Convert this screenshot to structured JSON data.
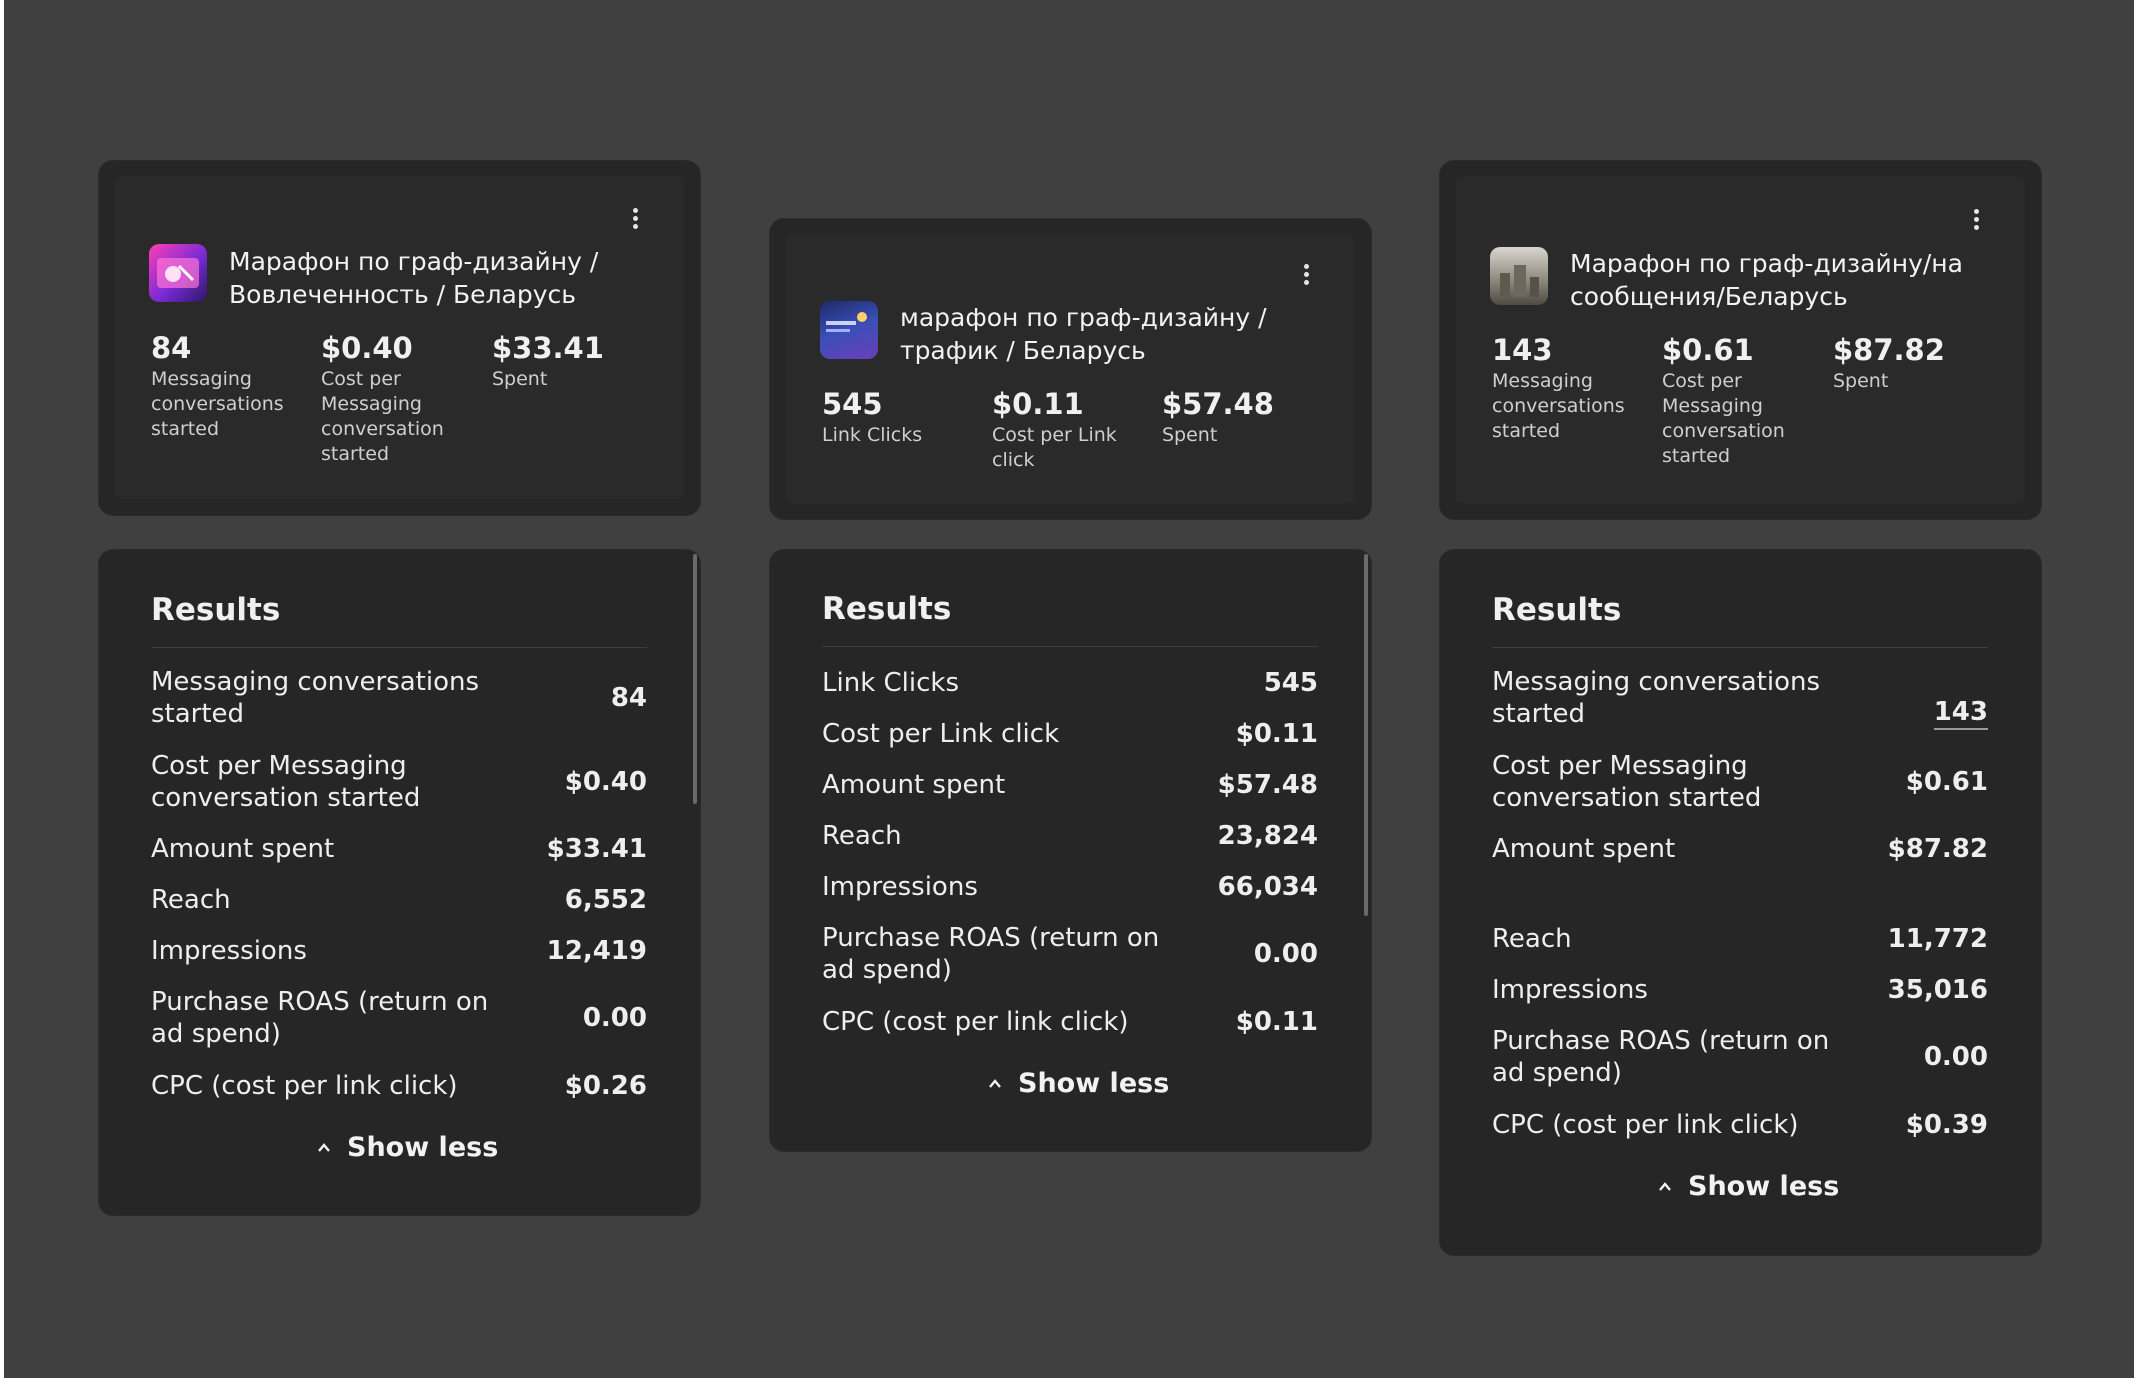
{
  "cards": [
    {
      "title": "Марафон по граф-дизайну / Вовлеченность / Беларусь",
      "metrics": [
        {
          "value": "84",
          "label": "Messaging conversations started"
        },
        {
          "value": "$0.40",
          "label": "Cost per Messaging conversation started"
        },
        {
          "value": "$33.41",
          "label": "Spent"
        }
      ],
      "results_title": "Results",
      "rows": [
        {
          "label": "Messaging conversations started",
          "value": "84"
        },
        {
          "label": "Cost per Messaging conversation started",
          "value": "$0.40"
        },
        {
          "label": "Amount spent",
          "value": "$33.41"
        },
        {
          "label": "Reach",
          "value": "6,552"
        },
        {
          "label": "Impressions",
          "value": "12,419"
        },
        {
          "label": "Purchase ROAS (return on ad spend)",
          "value": "0.00"
        },
        {
          "label": "CPC (cost per link click)",
          "value": "$0.26"
        }
      ],
      "show_less": "Show less"
    },
    {
      "title": "марафон по граф-дизайну / трафик / Беларусь",
      "metrics": [
        {
          "value": "545",
          "label": "Link Clicks"
        },
        {
          "value": "$0.11",
          "label": "Cost per Link click"
        },
        {
          "value": "$57.48",
          "label": "Spent"
        }
      ],
      "results_title": "Results",
      "rows": [
        {
          "label": "Link Clicks",
          "value": "545"
        },
        {
          "label": "Cost per Link click",
          "value": "$0.11"
        },
        {
          "label": "Amount spent",
          "value": "$57.48"
        },
        {
          "label": "Reach",
          "value": "23,824"
        },
        {
          "label": "Impressions",
          "value": "66,034"
        },
        {
          "label": "Purchase ROAS (return on ad spend)",
          "value": "0.00"
        },
        {
          "label": "CPC (cost per link click)",
          "value": "$0.11"
        }
      ],
      "show_less": "Show less"
    },
    {
      "title": "Марафон по граф-дизайну/на сообщения/Беларусь",
      "metrics": [
        {
          "value": "143",
          "label": "Messaging conversations started"
        },
        {
          "value": "$0.61",
          "label": "Cost per Messaging conversation started"
        },
        {
          "value": "$87.82",
          "label": "Spent"
        }
      ],
      "results_title": "Results",
      "rows": [
        {
          "label": "Messaging conversations started",
          "value": "143"
        },
        {
          "label": "Cost per Messaging conversation started",
          "value": "$0.61"
        },
        {
          "label": "Amount spent",
          "value": "$87.82"
        },
        {
          "label": "Reach",
          "value": "11,772"
        },
        {
          "label": "Impressions",
          "value": "35,016"
        },
        {
          "label": "Purchase ROAS (return on ad spend)",
          "value": "0.00"
        },
        {
          "label": "CPC (cost per link click)",
          "value": "$0.39"
        }
      ],
      "show_less": "Show less"
    }
  ],
  "colors": {
    "page_bg": "#404040",
    "card_bg": "#262626",
    "text": "#eeeeee"
  },
  "icons": {
    "menu": "more-vertical-icon",
    "collapse": "chevron-up-icon"
  }
}
